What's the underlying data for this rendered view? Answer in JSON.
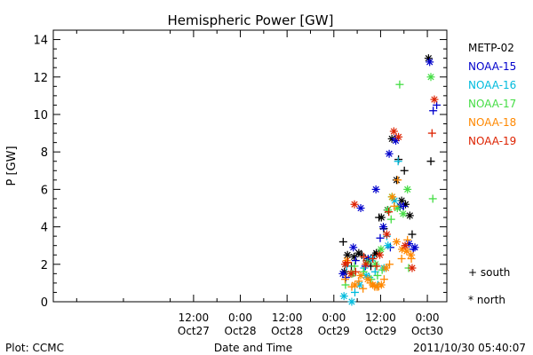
{
  "footer": {
    "left": "Plot: CCMC",
    "right": "2011/10/30 05:40:07"
  },
  "legend": {
    "south": "+ south",
    "north": "* north"
  },
  "chart_data": {
    "type": "scatter",
    "title": "Hemispheric Power [GW]",
    "xlabel": "Date and Time",
    "ylabel": "P [GW]",
    "ylim": [
      0,
      14.5
    ],
    "yticks": [
      0,
      2,
      4,
      6,
      8,
      10,
      12,
      14
    ],
    "x_unit": "hours since 2011-10-26 00:00",
    "xlim": [
      0,
      101
    ],
    "xticks": [
      {
        "x": 36,
        "line1": "12:00",
        "line2": "Oct27"
      },
      {
        "x": 48,
        "line1": "0:00",
        "line2": "Oct28"
      },
      {
        "x": 60,
        "line1": "12:00",
        "line2": "Oct28"
      },
      {
        "x": 72,
        "line1": "0:00",
        "line2": "Oct29"
      },
      {
        "x": 84,
        "line1": "12:00",
        "line2": "Oct29"
      },
      {
        "x": 96,
        "line1": "0:00",
        "line2": "Oct30"
      }
    ],
    "grid": false,
    "legend_position": "right",
    "series": [
      {
        "name": "METP-02",
        "color": "#000000",
        "south": [
          [
            74.4,
            3.2
          ],
          [
            76.5,
            1.9
          ],
          [
            79.2,
            2.5
          ],
          [
            80.5,
            2.2
          ],
          [
            81.5,
            1.9
          ],
          [
            82.4,
            2.5
          ],
          [
            83.6,
            4.5
          ],
          [
            84.8,
            3.9
          ],
          [
            88.6,
            7.6
          ],
          [
            90.1,
            7.0
          ],
          [
            92.1,
            3.6
          ],
          [
            96.9,
            7.5
          ]
        ],
        "north": [
          [
            74.7,
            1.6
          ],
          [
            75.5,
            2.5
          ],
          [
            77.2,
            2.4
          ],
          [
            78.4,
            2.6
          ],
          [
            80.9,
            2.2
          ],
          [
            82.9,
            2.6
          ],
          [
            84.2,
            4.5
          ],
          [
            85.8,
            4.9
          ],
          [
            86.9,
            8.7
          ],
          [
            88.1,
            6.5
          ],
          [
            89.4,
            5.4
          ],
          [
            90.4,
            5.2
          ],
          [
            91.5,
            4.6
          ],
          [
            96.3,
            13.0
          ]
        ]
      },
      {
        "name": "NOAA-15",
        "color": "#0000cc",
        "south": [
          [
            75.1,
            1.3
          ],
          [
            77.6,
            2.2
          ],
          [
            80.1,
            1.9
          ],
          [
            83.9,
            3.4
          ],
          [
            86.5,
            2.9
          ],
          [
            87.8,
            8.7
          ],
          [
            89.9,
            5.1
          ],
          [
            92.4,
            2.8
          ],
          [
            97.5,
            10.2
          ],
          [
            98.4,
            10.5
          ]
        ],
        "north": [
          [
            74.3,
            1.5
          ],
          [
            77.0,
            2.9
          ],
          [
            78.9,
            5.0
          ],
          [
            80.8,
            2.3
          ],
          [
            82.8,
            6.0
          ],
          [
            84.7,
            4.0
          ],
          [
            86.2,
            7.9
          ],
          [
            87.9,
            8.6
          ],
          [
            89.0,
            5.1
          ],
          [
            91.3,
            3.1
          ],
          [
            92.8,
            2.9
          ],
          [
            96.6,
            12.8
          ]
        ]
      },
      {
        "name": "NOAA-16",
        "color": "#00bbdd",
        "south": [
          [
            75.3,
            1.9
          ],
          [
            77.4,
            0.5
          ],
          [
            79.8,
            1.8
          ],
          [
            81.1,
            1.3
          ],
          [
            82.6,
            1.6
          ],
          [
            83.3,
            0.9
          ],
          [
            85.6,
            3.5
          ],
          [
            88.5,
            7.5
          ]
        ],
        "north": [
          [
            74.6,
            0.3
          ],
          [
            76.6,
            0.0
          ],
          [
            78.6,
            0.9
          ],
          [
            80.3,
            1.4
          ],
          [
            81.9,
            2.3
          ],
          [
            84.9,
            1.8
          ],
          [
            85.9,
            3.0
          ],
          [
            87.6,
            5.4
          ]
        ]
      },
      {
        "name": "NOAA-17",
        "color": "#44dd44",
        "south": [
          [
            75.0,
            0.9
          ],
          [
            77.3,
            1.9
          ],
          [
            79.6,
            1.6
          ],
          [
            81.6,
            1.2
          ],
          [
            83.2,
            1.4
          ],
          [
            84.4,
            1.7
          ],
          [
            86.7,
            4.4
          ],
          [
            88.9,
            11.6
          ],
          [
            91.2,
            1.8
          ],
          [
            97.4,
            5.5
          ]
        ],
        "north": [
          [
            76.8,
            1.5
          ],
          [
            80.6,
            2.1
          ],
          [
            82.7,
            2.0
          ],
          [
            84.1,
            2.8
          ],
          [
            85.9,
            4.9
          ],
          [
            86.9,
            5.6
          ],
          [
            88.3,
            5.0
          ],
          [
            89.8,
            4.7
          ],
          [
            90.9,
            6.0
          ],
          [
            96.9,
            12.0
          ]
        ]
      },
      {
        "name": "NOAA-18",
        "color": "#ff8800",
        "south": [
          [
            74.9,
            1.2
          ],
          [
            76.6,
            0.8
          ],
          [
            78.4,
            1.1
          ],
          [
            79.5,
            0.7
          ],
          [
            81.4,
            1.0
          ],
          [
            82.5,
            0.8
          ],
          [
            83.4,
            0.8
          ],
          [
            84.9,
            1.2
          ],
          [
            86.3,
            2.0
          ],
          [
            87.5,
            5.1
          ],
          [
            88.4,
            6.5
          ],
          [
            89.4,
            2.3
          ],
          [
            90.9,
            3.3
          ],
          [
            91.9,
            2.3
          ]
        ],
        "north": [
          [
            75.3,
            2.2
          ],
          [
            77.4,
            0.9
          ],
          [
            78.9,
            1.4
          ],
          [
            80.7,
            1.2
          ],
          [
            82.0,
            0.9
          ],
          [
            83.0,
            0.8
          ],
          [
            84.2,
            0.9
          ],
          [
            85.4,
            1.8
          ],
          [
            87.0,
            5.6
          ],
          [
            88.1,
            3.2
          ],
          [
            89.5,
            2.8
          ],
          [
            90.7,
            2.7
          ],
          [
            91.8,
            2.5
          ]
        ]
      },
      {
        "name": "NOAA-19",
        "color": "#dd2200",
        "south": [
          [
            75.6,
            2.1
          ],
          [
            77.6,
            1.6
          ],
          [
            79.7,
            2.4
          ],
          [
            82.0,
            2.3
          ],
          [
            83.0,
            1.9
          ],
          [
            86.1,
            4.8
          ],
          [
            97.2,
            9.0
          ]
        ],
        "north": [
          [
            74.9,
            2.0
          ],
          [
            76.4,
            1.5
          ],
          [
            77.3,
            5.2
          ],
          [
            80.2,
            2.0
          ],
          [
            83.8,
            2.5
          ],
          [
            85.6,
            3.6
          ],
          [
            87.4,
            9.1
          ],
          [
            88.6,
            8.8
          ],
          [
            90.3,
            3.0
          ],
          [
            92.1,
            1.8
          ],
          [
            97.8,
            10.8
          ]
        ]
      }
    ]
  }
}
